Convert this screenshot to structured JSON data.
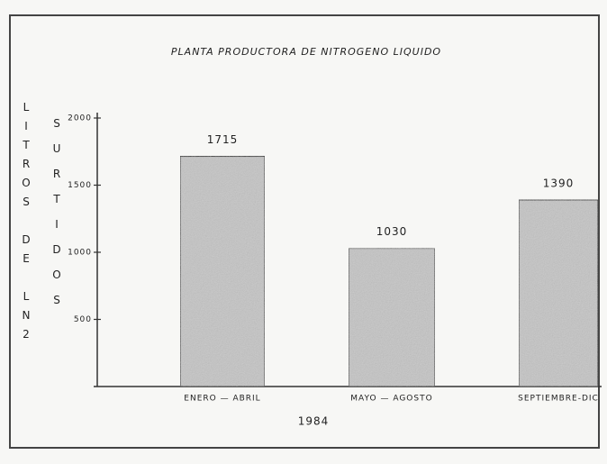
{
  "chart_data": {
    "type": "bar",
    "title": "PLANTA PRODUCTORA DE NITROGENO LIQUIDO",
    "y_label": "LITROS DE LN2",
    "y_label_2": "SURTIDOS",
    "x_label": "1984",
    "categories": [
      "ENERO — ABRIL",
      "MAYO — AGOSTO",
      "SEPTIEMBRE-DIC"
    ],
    "values": [
      1715,
      1030,
      1390
    ],
    "color": "#c4c4c4",
    "ylim": [
      0,
      2000
    ],
    "yticks": [
      500,
      1000,
      1500,
      2000
    ],
    "grid": false
  }
}
